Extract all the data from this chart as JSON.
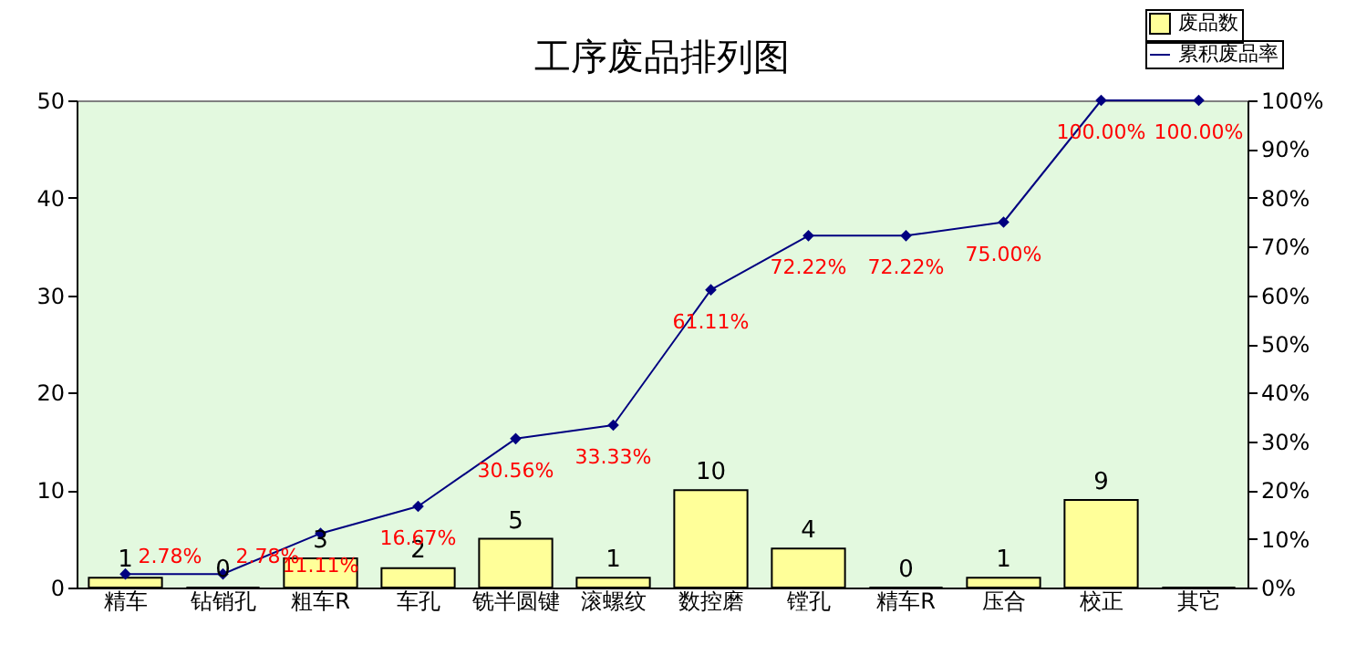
{
  "chart_data": {
    "type": "bar",
    "title": "工序废品排列图",
    "categories": [
      "精车",
      "钻销孔",
      "粗车R",
      "车孔",
      "铣半圆键",
      "滚螺纹",
      "数控磨",
      "镗孔",
      "精车R",
      "压合",
      "校正",
      "其它"
    ],
    "series": [
      {
        "name": "废品数",
        "color": "#ffff99",
        "values": [
          1,
          0,
          3,
          2,
          5,
          1,
          10,
          4,
          0,
          1,
          9,
          0
        ],
        "value_labels": [
          "1",
          "0",
          "3",
          "2",
          "5",
          "1",
          "10",
          "4",
          "0",
          "1",
          "9",
          null
        ]
      },
      {
        "name": "累积废品率",
        "type": "line",
        "axis": "y2",
        "color": "#000080",
        "marker": "diamond",
        "values": [
          2.78,
          2.78,
          11.11,
          16.67,
          30.56,
          33.33,
          61.11,
          72.22,
          72.22,
          75,
          100,
          100
        ],
        "value_labels": [
          "2.78%",
          "2.78%",
          "11.11%",
          "16.67%",
          "30.56%",
          "33.33%",
          "61.11%",
          "72.22%",
          "72.22%",
          "75.00%",
          "100.00%",
          "100.00%"
        ]
      }
    ],
    "ylim": [
      0,
      50
    ],
    "yticks": [
      0,
      10,
      20,
      30,
      40,
      50
    ],
    "y2lim": [
      0,
      100
    ],
    "y2ticks": [
      {
        "value": 0,
        "label": "0%"
      },
      {
        "value": 10,
        "label": "10%"
      },
      {
        "value": 20,
        "label": "20%"
      },
      {
        "value": 30,
        "label": "30%"
      },
      {
        "value": 40,
        "label": "40%"
      },
      {
        "value": 50,
        "label": "50%"
      },
      {
        "value": 60,
        "label": "60%"
      },
      {
        "value": 70,
        "label": "70%"
      },
      {
        "value": 80,
        "label": "80%"
      },
      {
        "value": 90,
        "label": "90%"
      },
      {
        "value": 100,
        "label": "100%"
      }
    ],
    "grid": false,
    "legend": "top right"
  }
}
